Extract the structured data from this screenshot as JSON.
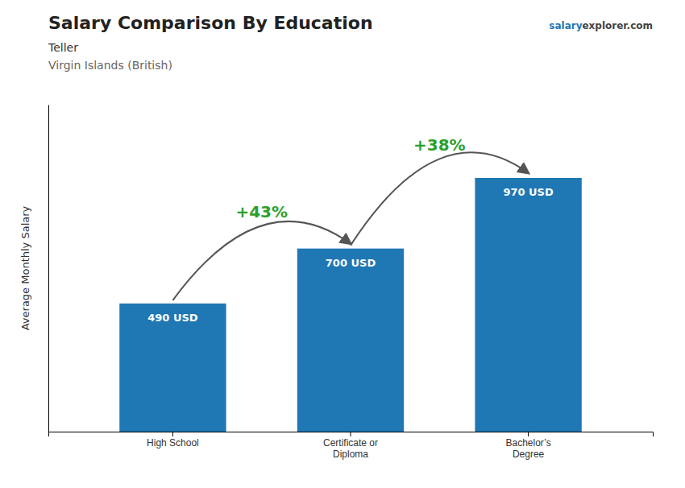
{
  "chart_data": {
    "type": "bar",
    "title": "Salary Comparison By Education",
    "subtitle": [
      "Teller",
      "Virgin Islands (British)"
    ],
    "source": [
      "salary",
      "explorer.com"
    ],
    "ylabel": "Average Monthly Salary",
    "categories": [
      "High School",
      "Certificate or\nDiploma",
      "Bachelor’s\nDegree"
    ],
    "values": [
      490,
      700,
      970
    ],
    "value_labels": [
      "490 USD",
      "700 USD",
      "970 USD"
    ],
    "data_labels": true,
    "annotations": [
      "+43%",
      "+38%"
    ],
    "ylim": [
      0,
      1250
    ],
    "tick_labels": "x",
    "grid": false
  }
}
